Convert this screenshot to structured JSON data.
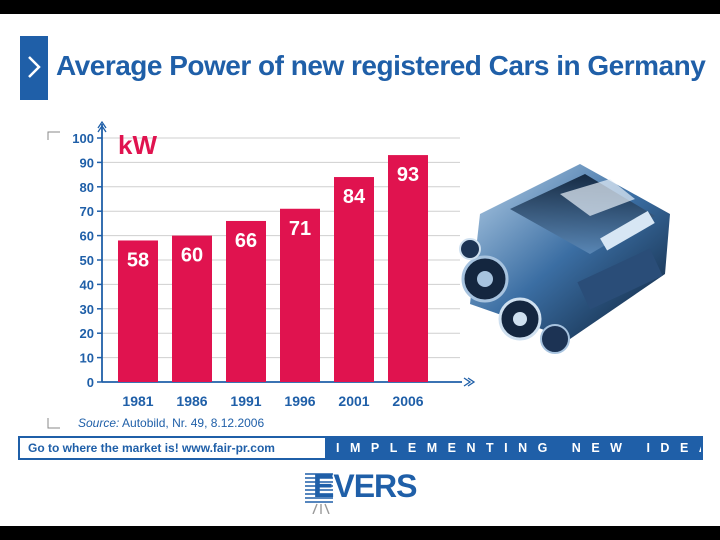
{
  "title": "Average Power of new registered Cars in Germany",
  "chart_data": {
    "type": "bar",
    "categories": [
      "1981",
      "1986",
      "1991",
      "1996",
      "2001",
      "2006"
    ],
    "values": [
      58,
      60,
      66,
      71,
      84,
      93
    ],
    "ylabel": "kW",
    "ylim": [
      0,
      100
    ],
    "yticks": [
      "0",
      "10",
      "20",
      "30",
      "40",
      "50",
      "60",
      "70",
      "80",
      "90",
      "100"
    ],
    "data_labels": [
      "58",
      "60",
      "66",
      "71",
      "84",
      "93"
    ],
    "bar_color": "#e0134f",
    "grid": true,
    "source_label": "Source:",
    "source_text": " Autobild, Nr. 49, 8.12.2006"
  },
  "footer": {
    "left_text": "Go to where the market is!   www.fair-pr.com",
    "right_text": "IMPLEMENTING NEW IDEAS"
  },
  "logo": {
    "text": "EVERS"
  },
  "icons": {
    "title_marker": "chevron-right-icon",
    "illustration": "engine-illustration"
  },
  "colors": {
    "brand_blue": "#1f5fa8",
    "bar_red": "#e0134f"
  }
}
